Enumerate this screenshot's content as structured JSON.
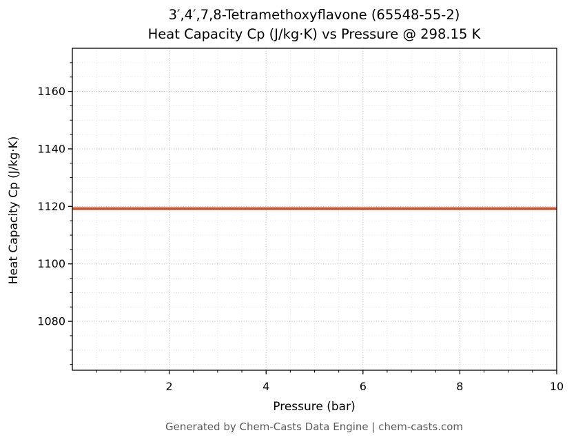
{
  "chart_data": {
    "type": "line",
    "title": "3′,4′,7,8-Tetramethoxyflavone (65548-55-2)\nHeat Capacity Cp (J/kg·K) vs Pressure @ 298.15 K",
    "title_lines": [
      "3′,4′,7,8-Tetramethoxyflavone (65548-55-2)",
      "Heat Capacity Cp (J/kg·K) vs Pressure @ 298.15 K"
    ],
    "xlabel": "Pressure (bar)",
    "ylabel": "Heat Capacity Cp (J/kg·K)",
    "xlim": [
      0,
      10
    ],
    "ylim": [
      1063,
      1175
    ],
    "x_ticks": [
      2,
      4,
      6,
      8,
      10
    ],
    "y_ticks": [
      1080,
      1100,
      1120,
      1140,
      1160
    ],
    "x_minor_step": 0.5,
    "y_minor_step": 5,
    "grid": true,
    "legend": "none",
    "series": [
      {
        "name": "Heat Capacity Cp",
        "x": [
          0,
          1,
          2,
          3,
          4,
          5,
          6,
          7,
          8,
          9,
          10
        ],
        "y": [
          1119.2,
          1119.2,
          1119.2,
          1119.2,
          1119.2,
          1119.2,
          1119.2,
          1119.2,
          1119.2,
          1119.2,
          1119.2
        ],
        "color": "#c5512e",
        "linewidth": 4
      }
    ],
    "colors": {
      "line": "#c5512e",
      "grid_major": "#bbbbbb",
      "grid_minor": "#dddddd",
      "axis": "#000000",
      "footer": "#595959"
    },
    "footer": "Generated by Chem-Casts Data Engine | chem-casts.com"
  }
}
